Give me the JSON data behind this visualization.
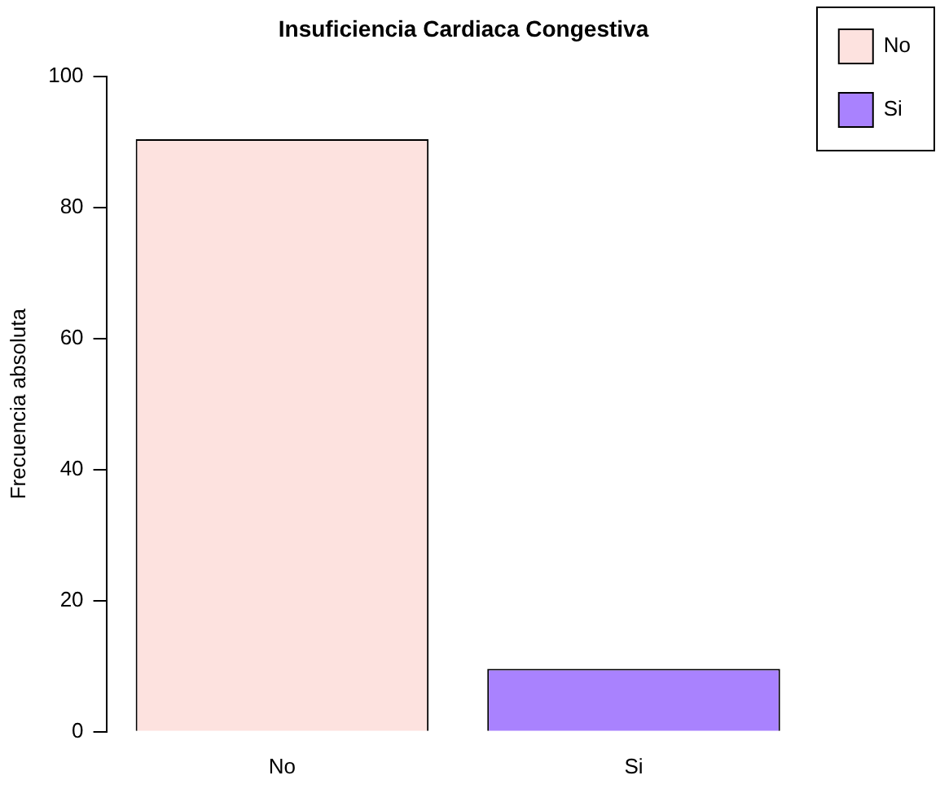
{
  "chart_data": {
    "type": "bar",
    "title": "Insuficiencia Cardiaca Congestiva",
    "ylabel": "Frecuencia absoluta",
    "categories": [
      "No",
      "Si"
    ],
    "series": [
      {
        "name": "No",
        "color": "#fde2df",
        "values": [
          90.4,
          null
        ]
      },
      {
        "name": "Si",
        "color": "#a982fe",
        "values": [
          null,
          9.6
        ]
      }
    ],
    "ylim": [
      0,
      100
    ],
    "yticks": [
      0,
      20,
      40,
      60,
      80,
      100
    ],
    "grid": false,
    "legend": "top right"
  }
}
